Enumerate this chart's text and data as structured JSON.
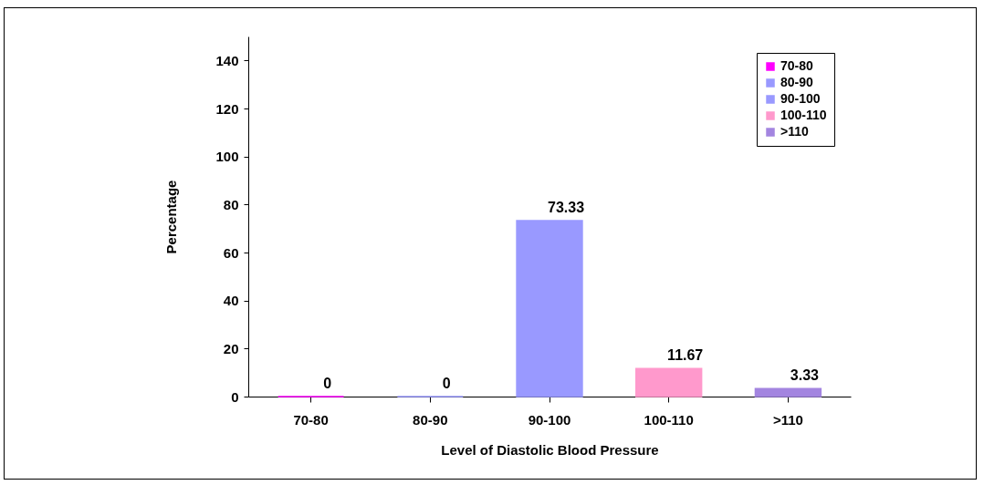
{
  "chart_data": {
    "type": "bar",
    "xlabel": "Level of Diastolic Blood Pressure",
    "ylabel": "Percentage",
    "categories": [
      "70-80",
      "80-90",
      "90-100",
      "100-110",
      ">110"
    ],
    "series": [
      {
        "name": "70-80",
        "color": "#ff00ff",
        "values": [
          0,
          null,
          null,
          null,
          null
        ]
      },
      {
        "name": "80-90",
        "color": "#9999ff",
        "values": [
          null,
          0,
          null,
          null,
          null
        ]
      },
      {
        "name": "90-100",
        "color": "#9999ff",
        "values": [
          null,
          null,
          73.33,
          null,
          null
        ]
      },
      {
        "name": "100-110",
        "color": "#ff99cc",
        "values": [
          null,
          null,
          null,
          11.67,
          null
        ]
      },
      {
        "name": ">110",
        "color": "#a385e0",
        "values": [
          null,
          null,
          null,
          null,
          3.33
        ]
      }
    ],
    "ylim": [
      0,
      150
    ],
    "yticks": [
      0,
      20,
      40,
      60,
      80,
      100,
      120,
      140
    ],
    "data_labels": true,
    "grid": false,
    "legend": "top right"
  }
}
